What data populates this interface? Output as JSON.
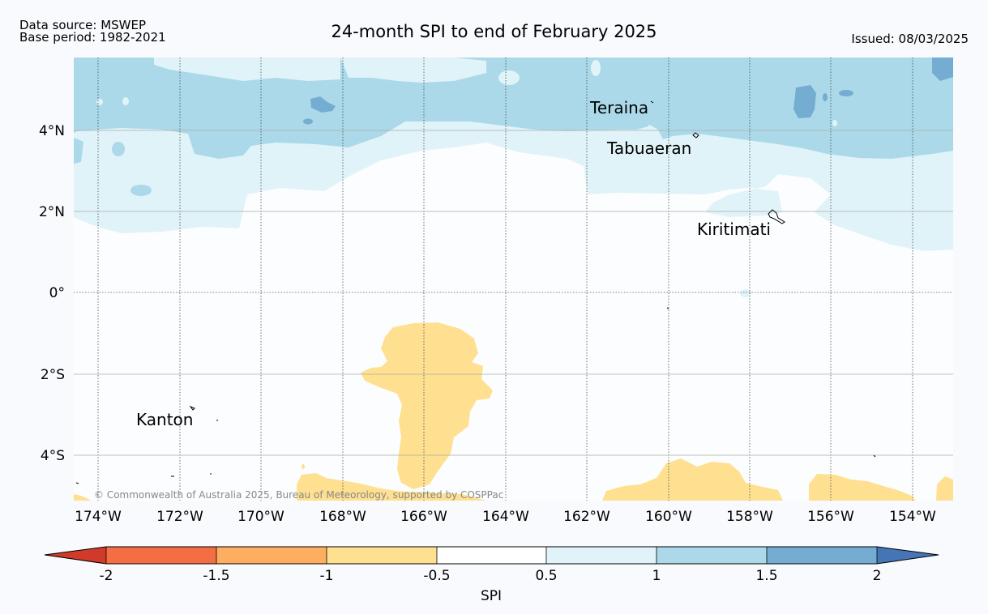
{
  "header": {
    "source_line": "Data source: MSWEP",
    "base_line": "Base period: 1982-2021",
    "title": "24-month SPI to end of February 2025",
    "issued": "Issued: 08/03/2025"
  },
  "map": {
    "lon_labels": [
      "174°W",
      "172°W",
      "170°W",
      "168°W",
      "166°W",
      "164°W",
      "162°W",
      "160°W",
      "158°W",
      "156°W",
      "154°W"
    ],
    "lat_labels": [
      "4°N",
      "2°N",
      "0°",
      "2°S",
      "4°S"
    ],
    "places": {
      "teraina": "Teraina",
      "tabuaeran": "Tabuaeran",
      "kiritimati": "Kiritimati",
      "kanton": "Kanton"
    },
    "copyright": "© Commonwealth of Australia 2025, Bureau of Meteorology, supported by COSPPac"
  },
  "colorbar": {
    "ticks": [
      "-2",
      "-1.5",
      "-1",
      "-0.5",
      "0.5",
      "1",
      "1.5",
      "2"
    ],
    "label": "SPI",
    "colors": [
      "#d13a2a",
      "#f46d43",
      "#fdae61",
      "#fee090",
      "#ffffff",
      "#e0f3f8",
      "#abd9e9",
      "#74add1",
      "#4575b4"
    ]
  }
}
